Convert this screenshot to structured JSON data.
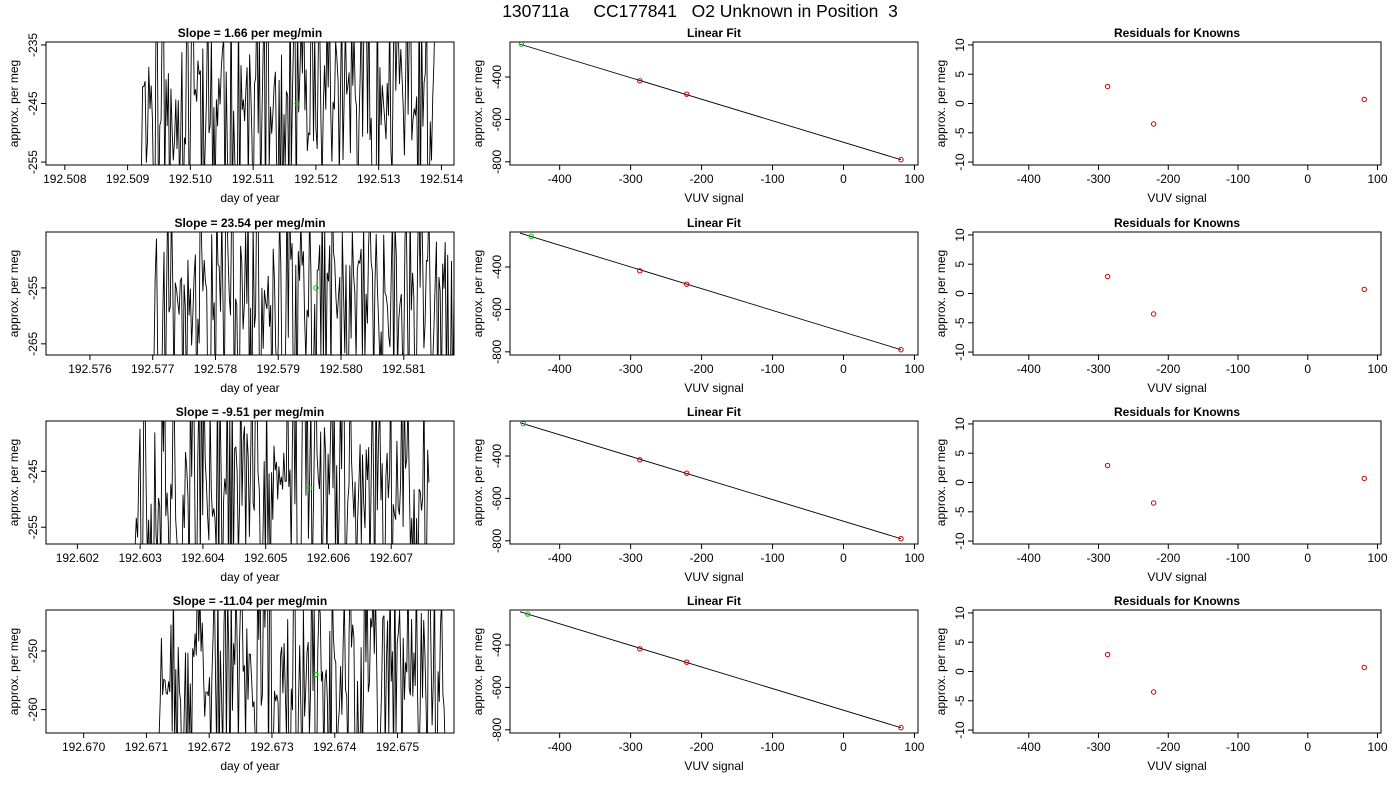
{
  "figure": {
    "title": "130711a     CC177841   O2 Unknown in Position  3"
  },
  "colors": {
    "trace": "#000000",
    "unknown": "#00cc00",
    "known": "#cc0000"
  },
  "chart_data": [
    {
      "type": "line",
      "panel": "row1-time",
      "title": "Slope =  1.66  per meg/min",
      "xlabel": "day of year",
      "ylabel": "approx. per meg",
      "xlim": [
        192.5077,
        192.5142
      ],
      "ylim": [
        -255.5,
        -234.5
      ],
      "xticks": [
        192.508,
        192.509,
        192.51,
        192.511,
        192.512,
        192.513,
        192.514
      ],
      "xtick_labels": [
        "192.508",
        "192.509",
        "192.510",
        "192.511",
        "192.512",
        "192.513",
        "192.514"
      ],
      "yticks": [
        -235,
        -245,
        -255
      ],
      "ytick_labels": [
        "-235",
        "-245",
        "-255"
      ],
      "trace_start": 192.5092,
      "trace_end": 192.5139,
      "unknown_point": {
        "x": 192.5117,
        "y": -245
      },
      "seed": 11
    },
    {
      "type": "scatter",
      "panel": "row1-fit",
      "title": "Linear Fit",
      "xlabel": "VUV signal",
      "ylabel": "approx. per meg",
      "xlim": [
        -470,
        105
      ],
      "ylim": [
        -815,
        -235
      ],
      "xticks": [
        -400,
        -300,
        -200,
        -100,
        0,
        100
      ],
      "xtick_labels": [
        "-400",
        "-300",
        "-200",
        "-100",
        "0",
        "100"
      ],
      "yticks": [
        -400,
        -600,
        -800
      ],
      "ytick_labels": [
        "-400",
        "-600",
        "-800"
      ],
      "knowns": [
        {
          "x": -287,
          "y": -418
        },
        {
          "x": -221,
          "y": -481
        },
        {
          "x": 81,
          "y": -790
        }
      ],
      "unknown": {
        "x": -454,
        "y": -245
      },
      "fit_line": [
        {
          "x": -456,
          "y": -245
        },
        {
          "x": 81,
          "y": -790
        }
      ]
    },
    {
      "type": "scatter",
      "panel": "row1-resid",
      "title": "Residuals for Knowns",
      "xlabel": "VUV signal",
      "ylabel": "approx. per meg",
      "xlim": [
        -480,
        105
      ],
      "ylim": [
        -10.5,
        10.5
      ],
      "xticks": [
        -400,
        -300,
        -200,
        -100,
        0,
        100
      ],
      "xtick_labels": [
        "-400",
        "-300",
        "-200",
        "-100",
        "0",
        "100"
      ],
      "yticks": [
        10,
        5,
        0,
        -5,
        -10
      ],
      "ytick_labels": [
        "10",
        "5",
        "0",
        "-5",
        "-10"
      ],
      "points": [
        {
          "x": -287,
          "y": 2.9
        },
        {
          "x": -221,
          "y": -3.5
        },
        {
          "x": 81,
          "y": 0.7
        }
      ]
    },
    {
      "type": "line",
      "panel": "row2-time",
      "title": "Slope =  23.54  per meg/min",
      "xlabel": "day of year",
      "ylabel": "approx. per meg",
      "xlim": [
        192.5753,
        192.5818
      ],
      "ylim": [
        -267,
        -245
      ],
      "xticks": [
        192.576,
        192.577,
        192.578,
        192.579,
        192.58,
        192.581
      ],
      "xtick_labels": [
        "192.576",
        "192.577",
        "192.578",
        "192.579",
        "192.580",
        "192.581"
      ],
      "yticks": [
        -255,
        -265
      ],
      "ytick_labels": [
        "-255",
        "-265"
      ],
      "trace_start": 192.577,
      "trace_end": 192.5818,
      "unknown_point": {
        "x": 192.5796,
        "y": -255
      },
      "seed": 23
    },
    {
      "type": "scatter",
      "panel": "row2-fit",
      "title": "Linear Fit",
      "xlabel": "VUV signal",
      "ylabel": "approx. per meg",
      "xlim": [
        -470,
        105
      ],
      "ylim": [
        -815,
        -235
      ],
      "xticks": [
        -400,
        -300,
        -200,
        -100,
        0,
        100
      ],
      "xtick_labels": [
        "-400",
        "-300",
        "-200",
        "-100",
        "0",
        "100"
      ],
      "yticks": [
        -400,
        -600,
        -800
      ],
      "ytick_labels": [
        "-400",
        "-600",
        "-800"
      ],
      "knowns": [
        {
          "x": -287,
          "y": -418
        },
        {
          "x": -221,
          "y": -481
        },
        {
          "x": 81,
          "y": -790
        }
      ],
      "unknown": {
        "x": -440,
        "y": -255
      },
      "fit_line": [
        {
          "x": -456,
          "y": -240
        },
        {
          "x": 81,
          "y": -790
        }
      ]
    },
    {
      "type": "scatter",
      "panel": "row2-resid",
      "title": "Residuals for Knowns",
      "xlabel": "VUV signal",
      "ylabel": "approx. per meg",
      "xlim": [
        -480,
        105
      ],
      "ylim": [
        -10.5,
        10.5
      ],
      "xticks": [
        -400,
        -300,
        -200,
        -100,
        0,
        100
      ],
      "xtick_labels": [
        "-400",
        "-300",
        "-200",
        "-100",
        "0",
        "100"
      ],
      "yticks": [
        10,
        5,
        0,
        -5,
        -10
      ],
      "ytick_labels": [
        "10",
        "5",
        "0",
        "-5",
        "-10"
      ],
      "points": [
        {
          "x": -287,
          "y": 2.9
        },
        {
          "x": -221,
          "y": -3.5
        },
        {
          "x": 81,
          "y": 0.7
        }
      ]
    },
    {
      "type": "line",
      "panel": "row3-time",
      "title": "Slope =  -9.51  per meg/min",
      "xlabel": "day of year",
      "ylabel": "approx. per meg",
      "xlim": [
        192.6015,
        192.608
      ],
      "ylim": [
        -258,
        -236
      ],
      "xticks": [
        192.602,
        192.603,
        192.604,
        192.605,
        192.606,
        192.607
      ],
      "xtick_labels": [
        "192.602",
        "192.603",
        "192.604",
        "192.605",
        "192.606",
        "192.607"
      ],
      "yticks": [
        -245,
        -255
      ],
      "ytick_labels": [
        "-245",
        "-255"
      ],
      "trace_start": 192.6029,
      "trace_end": 192.6076,
      "unknown_point": {
        "x": 192.6057,
        "y": -248
      },
      "seed": 37
    },
    {
      "type": "scatter",
      "panel": "row3-fit",
      "title": "Linear Fit",
      "xlabel": "VUV signal",
      "ylabel": "approx. per meg",
      "xlim": [
        -470,
        105
      ],
      "ylim": [
        -815,
        -235
      ],
      "xticks": [
        -400,
        -300,
        -200,
        -100,
        0,
        100
      ],
      "xtick_labels": [
        "-400",
        "-300",
        "-200",
        "-100",
        "0",
        "100"
      ],
      "yticks": [
        -400,
        -600,
        -800
      ],
      "ytick_labels": [
        "-400",
        "-600",
        "-800"
      ],
      "knowns": [
        {
          "x": -287,
          "y": -418
        },
        {
          "x": -221,
          "y": -481
        },
        {
          "x": 81,
          "y": -790
        }
      ],
      "unknown": {
        "x": -451,
        "y": -248
      },
      "fit_line": [
        {
          "x": -456,
          "y": -243
        },
        {
          "x": 81,
          "y": -790
        }
      ]
    },
    {
      "type": "scatter",
      "panel": "row3-resid",
      "title": "Residuals for Knowns",
      "xlabel": "VUV signal",
      "ylabel": "approx. per meg",
      "xlim": [
        -480,
        105
      ],
      "ylim": [
        -10.5,
        10.5
      ],
      "xticks": [
        -400,
        -300,
        -200,
        -100,
        0,
        100
      ],
      "xtick_labels": [
        "-400",
        "-300",
        "-200",
        "-100",
        "0",
        "100"
      ],
      "yticks": [
        10,
        5,
        0,
        -5,
        -10
      ],
      "ytick_labels": [
        "10",
        "5",
        "0",
        "-5",
        "-10"
      ],
      "points": [
        {
          "x": -287,
          "y": 2.9
        },
        {
          "x": -221,
          "y": -3.5
        },
        {
          "x": 81,
          "y": 0.7
        }
      ]
    },
    {
      "type": "line",
      "panel": "row4-time",
      "title": "Slope =  -11.04  per meg/min",
      "xlabel": "day of year",
      "ylabel": "approx. per meg",
      "xlim": [
        192.6694,
        192.6759
      ],
      "ylim": [
        -264,
        -243
      ],
      "xticks": [
        192.67,
        192.671,
        192.672,
        192.673,
        192.674,
        192.675
      ],
      "xtick_labels": [
        "192.670",
        "192.671",
        "192.672",
        "192.673",
        "192.674",
        "192.675"
      ],
      "yticks": [
        -250,
        -260
      ],
      "ytick_labels": [
        "-250",
        "-260"
      ],
      "trace_start": 192.6712,
      "trace_end": 192.6758,
      "unknown_point": {
        "x": 192.6737,
        "y": -254
      },
      "seed": 53
    },
    {
      "type": "scatter",
      "panel": "row4-fit",
      "title": "Linear Fit",
      "xlabel": "VUV signal",
      "ylabel": "approx. per meg",
      "xlim": [
        -470,
        105
      ],
      "ylim": [
        -815,
        -235
      ],
      "xticks": [
        -400,
        -300,
        -200,
        -100,
        0,
        100
      ],
      "xtick_labels": [
        "-400",
        "-300",
        "-200",
        "-100",
        "0",
        "100"
      ],
      "yticks": [
        -400,
        -600,
        -800
      ],
      "ytick_labels": [
        "-400",
        "-600",
        "-800"
      ],
      "knowns": [
        {
          "x": -287,
          "y": -418
        },
        {
          "x": -221,
          "y": -481
        },
        {
          "x": 81,
          "y": -790
        }
      ],
      "unknown": {
        "x": -445,
        "y": -254
      },
      "fit_line": [
        {
          "x": -456,
          "y": -243
        },
        {
          "x": 81,
          "y": -790
        }
      ]
    },
    {
      "type": "scatter",
      "panel": "row4-resid",
      "title": "Residuals for Knowns",
      "xlabel": "VUV signal",
      "ylabel": "approx. per meg",
      "xlim": [
        -480,
        105
      ],
      "ylim": [
        -10.5,
        10.5
      ],
      "xticks": [
        -400,
        -300,
        -200,
        -100,
        0,
        100
      ],
      "xtick_labels": [
        "-400",
        "-300",
        "-200",
        "-100",
        "0",
        "100"
      ],
      "yticks": [
        10,
        5,
        0,
        -5,
        -10
      ],
      "ytick_labels": [
        "10",
        "5",
        "0",
        "-5",
        "-10"
      ],
      "points": [
        {
          "x": -287,
          "y": 2.9
        },
        {
          "x": -221,
          "y": -3.5
        },
        {
          "x": 81,
          "y": 0.7
        }
      ]
    }
  ]
}
